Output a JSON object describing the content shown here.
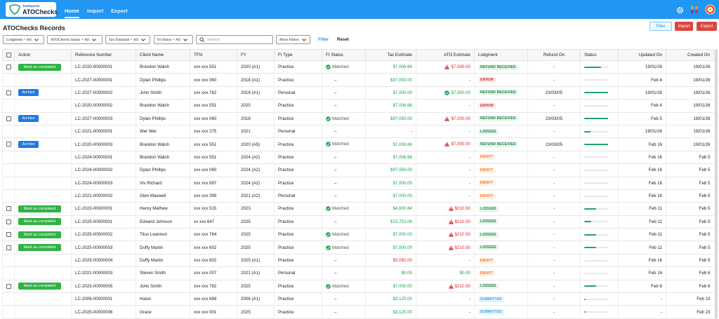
{
  "header": {
    "logo_small": "TaxReports",
    "logo": "ATOChecks",
    "nav": [
      "Home",
      "Import",
      "Export"
    ]
  },
  "page": {
    "title": "ATOChecks Records",
    "buttons": [
      "Filter",
      "Import",
      "Export"
    ],
    "filters": [
      "Lodgment = All",
      "ATOChecks Status = All",
      "Tax Estimate = All",
      "FI Status = All"
    ],
    "search": "Search",
    "more_filters": "More Filters",
    "filter_link": "Filter",
    "reset": "Reset"
  },
  "table": {
    "columns": [
      "Action",
      "Reference Number",
      "Client Name",
      "TFN",
      "FY",
      "FI Type",
      "FI Status",
      "Tax Estimate",
      "ATO Estimate",
      "Lodgment",
      "Refund On",
      "Status",
      "Updated On",
      "Created On"
    ],
    "rows": [
      {
        "checkbox": true,
        "action": "Mark as completed",
        "ref": "LC-2020-00000001",
        "client": "Brandon Walsh",
        "tfn": "xxx xxx 551",
        "fy": "2020 (A1)",
        "fi_type": "Practice",
        "fi_status": "Matched",
        "tax": "$7,006.66",
        "tax_tone": "green",
        "ato": "$7,000.00",
        "ato_tone": "warn",
        "lodgment": "REFUND RECEIVED",
        "lodgment_tone": "green",
        "refund": "-",
        "progress": 70,
        "updated": "19/01/26",
        "created": "19/01/26"
      },
      {
        "checkbox": false,
        "action": null,
        "ref": "LC-2027-00000001",
        "client": "Dylan Phillips",
        "tfn": "xxx xxx 060",
        "fy": "2018 (A1)",
        "fi_type": "Practice",
        "fi_status": "–",
        "tax": "$97,050.00",
        "tax_tone": "green",
        "ato": "-",
        "ato_tone": "plain",
        "lodgment": "ERROR",
        "lodgment_tone": "red",
        "refund": "-",
        "progress": 0,
        "updated": "Feb 4",
        "created": "19/01/26"
      },
      {
        "checkbox": true,
        "action": "Archive",
        "ref": "LC-2027-00000002",
        "client": "John Smith",
        "tfn": "xxx xxx 782",
        "fy": "2018 (A1)",
        "fi_type": "Personal",
        "fi_status": "–",
        "tax": "$7,000.00",
        "tax_tone": "green",
        "ato": "$7,000.00",
        "ato_tone": "ok",
        "lodgment": "REFUND RECEIVED",
        "lodgment_tone": "green",
        "refund": "23/03/05",
        "progress": 100,
        "updated": "19/01/26",
        "created": "19/01/26"
      },
      {
        "checkbox": false,
        "action": null,
        "ref": "LC-2020-00000002",
        "client": "Brandon Walsh",
        "tfn": "xxx xxx 551",
        "fy": "2020",
        "fi_type": "Practice",
        "fi_status": "–",
        "tax": "$7,006.66",
        "tax_tone": "green",
        "ato": "-",
        "ato_tone": "plain",
        "lodgment": "ERROR",
        "lodgment_tone": "red",
        "refund": "-",
        "progress": 0,
        "updated": "Feb 4",
        "created": "19/01/26"
      },
      {
        "checkbox": true,
        "action": "Archive",
        "ref": "LC-2027-00000003",
        "client": "Dylan Phillips",
        "tfn": "xxx xxx 060",
        "fy": "2018",
        "fi_type": "Practice",
        "fi_status": "Matched",
        "tax": "$97,050.00",
        "tax_tone": "green",
        "ato": "$7,000.00",
        "ato_tone": "warn",
        "lodgment": "REFUND RECEIVED",
        "lodgment_tone": "green",
        "refund": "23/03/05",
        "progress": 100,
        "updated": "Feb 5",
        "created": "19/01/26"
      },
      {
        "checkbox": false,
        "action": null,
        "ref": "LC-2021-00000001",
        "client": "Wer Wer",
        "tfn": "xxx xxx 275",
        "fy": "2021",
        "fi_type": "Personal",
        "fi_status": "–",
        "tax": "-",
        "tax_tone": "plain",
        "ato": "-",
        "ato_tone": "plain",
        "lodgment": "LODGED",
        "lodgment_tone": "green",
        "refund": "-",
        "progress": 25,
        "updated": "19/01/26",
        "created": "19/01/26"
      },
      {
        "checkbox": true,
        "action": "Archive",
        "ref": "LC-2020-00000003",
        "client": "Brandon Walsh",
        "tfn": "xxx xxx 551",
        "fy": "2020 (A5)",
        "fi_type": "Practice",
        "fi_status": "Matched",
        "tax": "$7,006.66",
        "tax_tone": "green",
        "ato": "$7,000.00",
        "ato_tone": "warn",
        "lodgment": "REFUND RECEIVED",
        "lodgment_tone": "green",
        "refund": "23/03/05",
        "progress": 100,
        "updated": "Feb 16",
        "created": "19/01/26"
      },
      {
        "checkbox": false,
        "action": null,
        "ref": "LC-2024-00000001",
        "client": "Brandon Walsh",
        "tfn": "xxx xxx 551",
        "fy": "2024 (A2)",
        "fi_type": "Practice",
        "fi_status": "–",
        "tax": "$7,006.66",
        "tax_tone": "green",
        "ato": "-",
        "ato_tone": "plain",
        "lodgment": "DRAFT",
        "lodgment_tone": "orange",
        "refund": "-",
        "progress": 0,
        "updated": "Feb 16",
        "created": "Feb 5"
      },
      {
        "checkbox": false,
        "action": null,
        "ref": "LC-2024-00000002",
        "client": "Dylan Phillips",
        "tfn": "xxx xxx 060",
        "fy": "2024 (A2)",
        "fi_type": "Practice",
        "fi_status": "–",
        "tax": "$97,050.00",
        "tax_tone": "green",
        "ato": "-",
        "ato_tone": "plain",
        "lodgment": "DRAFT",
        "lodgment_tone": "orange",
        "refund": "-",
        "progress": 0,
        "updated": "Feb 16",
        "created": "Feb 5"
      },
      {
        "checkbox": false,
        "action": null,
        "ref": "LC-2024-00000003",
        "client": "Viv Richard",
        "tfn": "xxx xxx 897",
        "fy": "2024 (A2)",
        "fi_type": "Practice",
        "fi_status": "–",
        "tax": "$7,000.00",
        "tax_tone": "green",
        "ato": "-",
        "ato_tone": "plain",
        "lodgment": "DRAFT",
        "lodgment_tone": "orange",
        "refund": "-",
        "progress": 0,
        "updated": "Feb 16",
        "created": "Feb 5"
      },
      {
        "checkbox": false,
        "action": null,
        "ref": "LC-2021-00000002",
        "client": "Glen Maxwell",
        "tfn": "xxx xxx 399",
        "fy": "2021 (A2)",
        "fi_type": "Personal",
        "fi_status": "–",
        "tax": "$7,000.00",
        "tax_tone": "green",
        "ato": "-",
        "ato_tone": "plain",
        "lodgment": "DRAFT",
        "lodgment_tone": "orange",
        "refund": "-",
        "progress": 0,
        "updated": "Feb 16",
        "created": "Feb 5"
      },
      {
        "checkbox": true,
        "action": "Mark as completed",
        "ref": "LC-2023-00000001",
        "client": "Henry Mathew",
        "tfn": "xxx xxx 515",
        "fy": "2023",
        "fi_type": "Practice",
        "fi_status": "Matched",
        "tax": "$4,600.84",
        "tax_tone": "green",
        "ato": "$210.50",
        "ato_tone": "warn",
        "lodgment": "LODGED",
        "lodgment_tone": "green",
        "refund": "-",
        "progress": 50,
        "updated": "Feb 11",
        "created": "Feb 5"
      },
      {
        "checkbox": true,
        "action": "Mark as completed",
        "ref": "LC-2025-00000001",
        "client": "Edward Johnson",
        "tfn": "xx xxx 647",
        "fy": "2025",
        "fi_type": "Practice",
        "fi_status": "–",
        "tax": "$13,752.06",
        "tax_tone": "green",
        "ato": "$210.50",
        "ato_tone": "warn",
        "lodgment": "LODGED",
        "lodgment_tone": "green",
        "refund": "-",
        "progress": 30,
        "updated": "Feb 11",
        "created": "Feb 5"
      },
      {
        "checkbox": true,
        "action": "Mark as completed",
        "ref": "LC-2025-00000002",
        "client": "Titus Leannon",
        "tfn": "xxx xxx 764",
        "fy": "2025",
        "fi_type": "Practice",
        "fi_status": "Matched",
        "tax": "$7,000.00",
        "tax_tone": "green",
        "ato": "$210.50",
        "ato_tone": "warn",
        "lodgment": "LODGED",
        "lodgment_tone": "green",
        "refund": "-",
        "progress": 50,
        "updated": "Feb 11",
        "created": "Feb 5"
      },
      {
        "checkbox": true,
        "action": "Mark as completed",
        "ref": "LC-2025-00000003",
        "client": "Duffy Martin",
        "tfn": "xxx xxx 602",
        "fy": "2025",
        "fi_type": "Practice",
        "fi_status": "Matched",
        "tax": "$7,000.00",
        "tax_tone": "green",
        "ato": "$210.50",
        "ato_tone": "warn",
        "lodgment": "LODGED",
        "lodgment_tone": "green",
        "refund": "-",
        "progress": 50,
        "updated": "Feb 11",
        "created": "Feb 5"
      },
      {
        "checkbox": false,
        "action": null,
        "ref": "LC-2025-00000004",
        "client": "Duffy Martin",
        "tfn": "xxx xxx 602",
        "fy": "2025 (A1)",
        "fi_type": "Practice",
        "fi_status": "–",
        "tax": "$3,050.00",
        "tax_tone": "red",
        "ato": "-",
        "ato_tone": "plain",
        "lodgment": "DRAFT",
        "lodgment_tone": "orange",
        "refund": "-",
        "progress": 0,
        "updated": "Feb 16",
        "created": "Feb 5"
      },
      {
        "checkbox": false,
        "action": null,
        "ref": "LC-2021-00000003",
        "client": "Steven Smith",
        "tfn": "xxx xxx 007",
        "fy": "2021 (A1)",
        "fi_type": "Personal",
        "fi_status": "–",
        "tax": "$0.00",
        "tax_tone": "green",
        "ato": "$0.00",
        "ato_tone": "green",
        "lodgment": "DRAFT",
        "lodgment_tone": "orange",
        "refund": "-",
        "progress": 0,
        "updated": "Feb 16",
        "created": "Feb 6"
      },
      {
        "checkbox": true,
        "action": "Mark as completed",
        "ref": "LC-2025-00000005",
        "client": "John Smith",
        "tfn": "xxx xxx 782",
        "fy": "2025",
        "fi_type": "Practice",
        "fi_status": "Matched",
        "tax": "$7,000.00",
        "tax_tone": "green",
        "ato": "$210.50",
        "ato_tone": "warn",
        "lodgment": "LODGED",
        "lodgment_tone": "green",
        "refund": "-",
        "progress": 50,
        "updated": "Feb 6",
        "created": "Feb 6"
      },
      {
        "checkbox": false,
        "action": null,
        "ref": "LC-2006-00000001",
        "client": "Hazel",
        "tfn": "xxx xxx 688",
        "fy": "2006 (A1)",
        "fi_type": "Practice",
        "fi_status": "–",
        "tax": "$3,125.00",
        "tax_tone": "green",
        "ato": "-",
        "ato_tone": "plain",
        "lodgment": "SUBMITTED",
        "lodgment_tone": "blue",
        "refund": "-",
        "progress": 5,
        "updated": "-",
        "created": "Feb 23"
      },
      {
        "checkbox": false,
        "action": null,
        "ref": "LC-2025-00000006",
        "client": "Grace",
        "tfn": "xxx xxx 001",
        "fy": "2025",
        "fi_type": "Practice",
        "fi_status": "–",
        "tax": "$3,125.00",
        "tax_tone": "green",
        "ato": "-",
        "ato_tone": "plain",
        "lodgment": "SUBMITTED",
        "lodgment_tone": "blue",
        "refund": "-",
        "progress": 5,
        "updated": "-",
        "created": "Feb 23"
      }
    ]
  }
}
